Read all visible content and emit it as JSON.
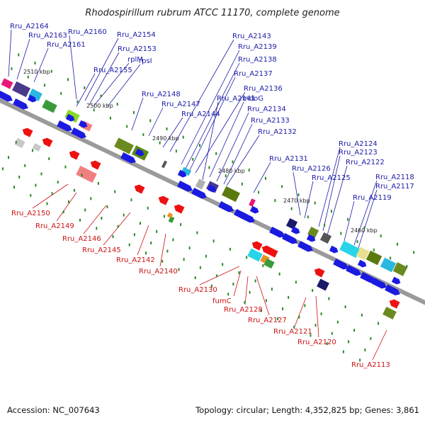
{
  "title": "Rhodospirillum rubrum ATCC 11170, complete genome",
  "accession": "Accession: NC_007643",
  "topology": "Topology: circular; Length: 4,352,825 bp; Genes: 3,861",
  "colors": {
    "backbone": "#9a9a9a",
    "forward_gene": "#1a1ae0",
    "reverse_gene": "#ee1111",
    "label_forward": "#1a1aa8",
    "label_reverse": "#cc1111",
    "tick": "#2a8a2a"
  },
  "scale_labels": [
    "2510 kbp",
    "2500 kbp",
    "2490 kbp",
    "2480 kbp",
    "2470 kbp",
    "2460 kbp"
  ],
  "forward_labels": [
    "Rru_A2164",
    "Rru_A2163",
    "Rru_A2161",
    "Rru_A2160",
    "Rru_A2154",
    "Rru_A2153",
    "rplM",
    "Rru_A2155",
    "rpsI",
    "Rru_A2148",
    "Rru_A2147",
    "Rru_A2144",
    "Rru_A2143",
    "Rru_A2139",
    "Rru_A2138",
    "Rru_A2137",
    "Rru_A2136",
    "Rru_A2141",
    "mdoG",
    "Rru_A2134",
    "Rru_A2133",
    "Rru_A2132",
    "Rru_A2131",
    "Rru_A2126",
    "Rru_A2125",
    "Rru_A2124",
    "Rru_A2123",
    "Rru_A2122",
    "Rru_A2119",
    "Rru_A2118",
    "Rru_A2117"
  ],
  "reverse_labels": [
    "Rru_A2150",
    "Rru_A2149",
    "Rru_A2146",
    "Rru_A2145",
    "Rru_A2142",
    "Rru_A2140",
    "Rru_A2130",
    "fumC",
    "Rru_A2128",
    "Rru_A2127",
    "Rru_A2121",
    "Rru_A2120",
    "Rru_A2113"
  ]
}
